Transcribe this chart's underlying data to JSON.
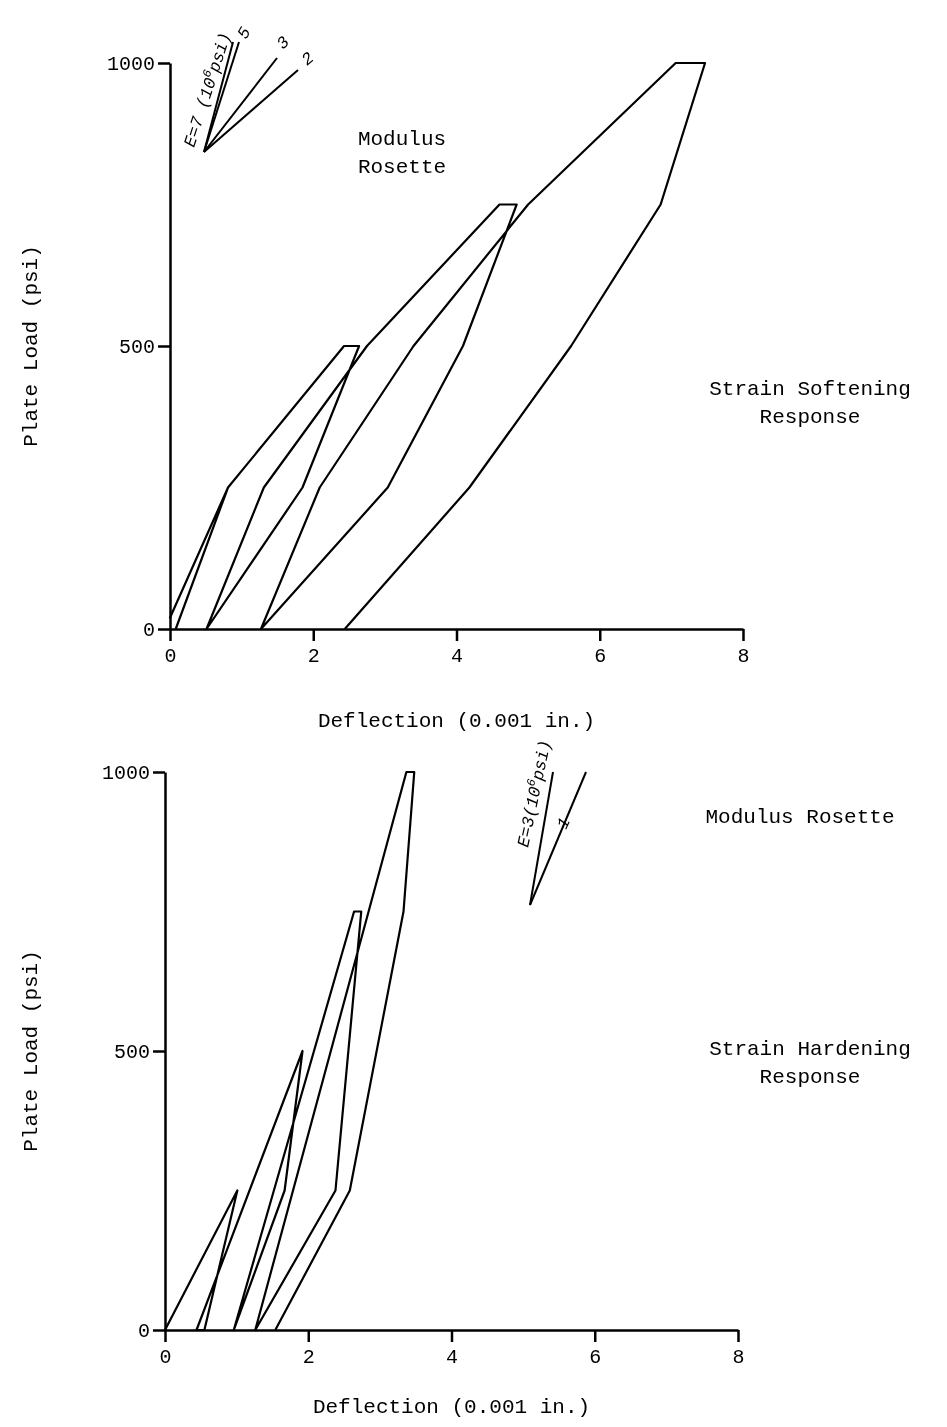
{
  "chart_data": [
    {
      "type": "line",
      "xlabel": "Deflection (0.001 in.)",
      "ylabel": "Plate Load (psi)",
      "xlim": [
        0,
        8
      ],
      "xticks": [
        0,
        2,
        4,
        6,
        8
      ],
      "ylim": [
        0,
        1000
      ],
      "yticks": [
        0,
        500,
        1000
      ],
      "grid": false,
      "marker": "none",
      "line_style": "solid",
      "series": [
        {
          "color": "#000000",
          "x": [
            0.08,
            0.81,
            0,
            0.81,
            2.43,
            2.64,
            1.85,
            0.51,
            1.31,
            2.75,
            4.6,
            4.84,
            4.09,
            3.04,
            1.27,
            2.09,
            3.4,
            5.0,
            7.06,
            7.47,
            6.85,
            5.6,
            4.18,
            2.44
          ],
          "values": [
            0,
            250,
            20,
            250,
            500,
            500,
            250,
            0,
            250,
            500,
            750,
            750,
            500,
            250,
            0,
            250,
            500,
            750,
            1000,
            1000,
            750,
            500,
            250,
            0
          ]
        }
      ],
      "annotations": [
        "Modulus\nRosette",
        "Strain Softening\nResponse",
        "E=7 (10$^{6}$psi)",
        "5",
        "3",
        "2"
      ]
    },
    {
      "type": "line",
      "xlabel": "Deflection (0.001 in.)",
      "ylabel": "Plate Load (psi)",
      "xlim": [
        0,
        8
      ],
      "xticks": [
        0,
        2,
        4,
        6,
        8
      ],
      "ylim": [
        0,
        1000
      ],
      "yticks": [
        0,
        500,
        1000
      ],
      "grid": false,
      "marker": "none",
      "line_style": "solid",
      "series": [
        {
          "color": "#000000",
          "x": [
            0,
            1.01,
            0.55,
            0.44,
            1.92,
            1.67,
            0.96,
            2.64,
            2.74,
            2.38,
            1.26,
            3.37,
            3.48,
            3.33,
            2.58,
            1.54
          ],
          "values": [
            0,
            250,
            0,
            0,
            500,
            250,
            0,
            750,
            750,
            250,
            0,
            1000,
            1000,
            750,
            250,
            0
          ]
        }
      ],
      "annotations": [
        "Modulus Rosette",
        "Strain Hardening\nResponse",
        "E=3(10$^{6}$psi)",
        "1"
      ]
    }
  ]
}
